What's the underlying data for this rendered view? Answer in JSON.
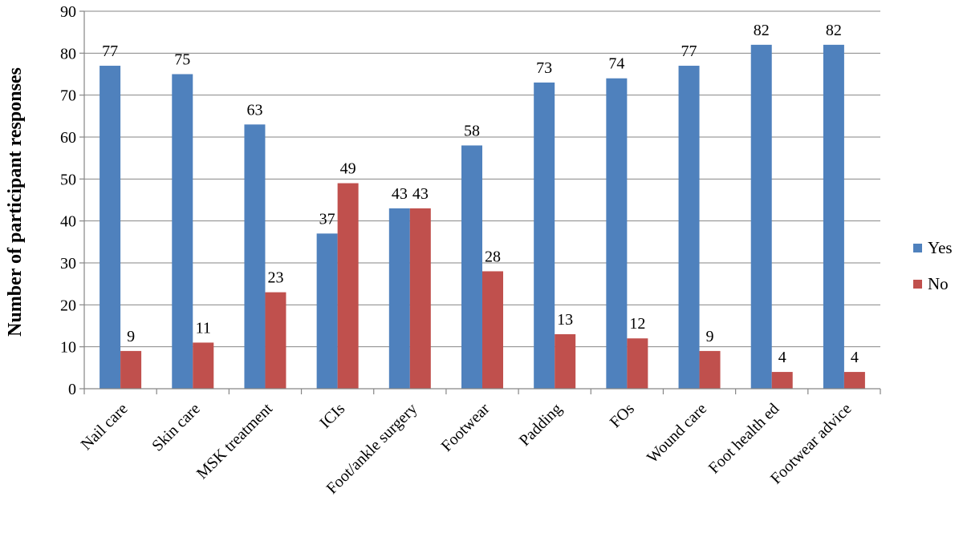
{
  "chart_data": {
    "type": "bar",
    "title": "",
    "xlabel": "",
    "ylabel": "Number of participant responses",
    "categories": [
      "Nail care",
      "Skin care",
      "MSK treatment",
      "ICIs",
      "Foot/ankle surgery",
      "Footwear",
      "Padding",
      "FOs",
      "Wound care",
      "Foot health ed",
      "Footwear advice"
    ],
    "series": [
      {
        "name": "Yes",
        "color": "#4F81BD",
        "values": [
          77,
          75,
          63,
          37,
          43,
          58,
          73,
          74,
          77,
          82,
          82
        ]
      },
      {
        "name": "No",
        "color": "#C0504D",
        "values": [
          9,
          11,
          23,
          49,
          43,
          28,
          13,
          12,
          9,
          4,
          4
        ]
      }
    ],
    "ylim": [
      0,
      90
    ],
    "yticks": [
      0,
      10,
      20,
      30,
      40,
      50,
      60,
      70,
      80,
      90
    ],
    "grid": true,
    "legend_position": "right"
  }
}
